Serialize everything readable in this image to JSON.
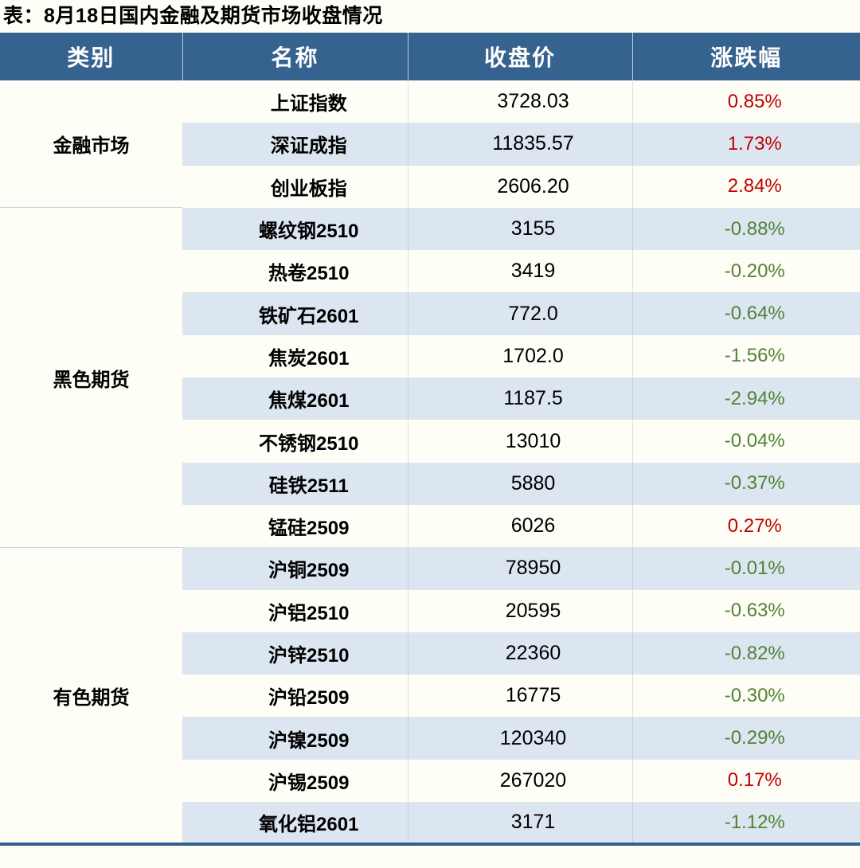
{
  "title": "表：8月18日国内金融及期货市场收盘情况",
  "colors": {
    "header_bg": "#36628F",
    "stripe_row_bg": "#DCE6F1",
    "page_bg": "#FFFEF6",
    "bottom_rule": "#31608E",
    "up_red": "#C00000",
    "down_green": "#538135"
  },
  "table": {
    "columns": [
      "类别",
      "名称",
      "收盘价",
      "涨跌幅"
    ],
    "groups": [
      {
        "category": "金融市场",
        "rows": [
          {
            "name": "上证指数",
            "close": "3728.03",
            "change": "0.85%",
            "trend": "up"
          },
          {
            "name": "深证成指",
            "close": "11835.57",
            "change": "1.73%",
            "trend": "up"
          },
          {
            "name": "创业板指",
            "close": "2606.20",
            "change": "2.84%",
            "trend": "up"
          }
        ]
      },
      {
        "category": "黑色期货",
        "rows": [
          {
            "name": "螺纹钢2510",
            "close": "3155",
            "change": "-0.88%",
            "trend": "down"
          },
          {
            "name": "热卷2510",
            "close": "3419",
            "change": "-0.20%",
            "trend": "down"
          },
          {
            "name": "铁矿石2601",
            "close": "772.0",
            "change": "-0.64%",
            "trend": "down"
          },
          {
            "name": "焦炭2601",
            "close": "1702.0",
            "change": "-1.56%",
            "trend": "down"
          },
          {
            "name": "焦煤2601",
            "close": "1187.5",
            "change": "-2.94%",
            "trend": "down"
          },
          {
            "name": "不锈钢2510",
            "close": "13010",
            "change": "-0.04%",
            "trend": "down"
          },
          {
            "name": "硅铁2511",
            "close": "5880",
            "change": "-0.37%",
            "trend": "down"
          },
          {
            "name": "锰硅2509",
            "close": "6026",
            "change": "0.27%",
            "trend": "up"
          }
        ]
      },
      {
        "category": "有色期货",
        "rows": [
          {
            "name": "沪铜2509",
            "close": "78950",
            "change": "-0.01%",
            "trend": "down"
          },
          {
            "name": "沪铝2510",
            "close": "20595",
            "change": "-0.63%",
            "trend": "down"
          },
          {
            "name": "沪锌2510",
            "close": "22360",
            "change": "-0.82%",
            "trend": "down"
          },
          {
            "name": "沪铅2509",
            "close": "16775",
            "change": "-0.30%",
            "trend": "down"
          },
          {
            "name": "沪镍2509",
            "close": "120340",
            "change": "-0.29%",
            "trend": "down"
          },
          {
            "name": "沪锡2509",
            "close": "267020",
            "change": "0.17%",
            "trend": "up"
          },
          {
            "name": "氧化铝2601",
            "close": "3171",
            "change": "-1.12%",
            "trend": "down"
          }
        ]
      }
    ]
  },
  "chart_data": {
    "type": "table",
    "title": "表：8月18日国内金融及期货市场收盘情况",
    "columns": [
      "类别",
      "名称",
      "收盘价",
      "涨跌幅"
    ],
    "rows": [
      [
        "金融市场",
        "上证指数",
        3728.03,
        0.85
      ],
      [
        "金融市场",
        "深证成指",
        11835.57,
        1.73
      ],
      [
        "金融市场",
        "创业板指",
        2606.2,
        2.84
      ],
      [
        "黑色期货",
        "螺纹钢2510",
        3155,
        -0.88
      ],
      [
        "黑色期货",
        "热卷2510",
        3419,
        -0.2
      ],
      [
        "黑色期货",
        "铁矿石2601",
        772.0,
        -0.64
      ],
      [
        "黑色期货",
        "焦炭2601",
        1702.0,
        -1.56
      ],
      [
        "黑色期货",
        "焦煤2601",
        1187.5,
        -2.94
      ],
      [
        "黑色期货",
        "不锈钢2510",
        13010,
        -0.04
      ],
      [
        "黑色期货",
        "硅铁2511",
        5880,
        -0.37
      ],
      [
        "黑色期货",
        "锰硅2509",
        6026,
        0.27
      ],
      [
        "有色期货",
        "沪铜2509",
        78950,
        -0.01
      ],
      [
        "有色期货",
        "沪铝2510",
        20595,
        -0.63
      ],
      [
        "有色期货",
        "沪锌2510",
        22360,
        -0.82
      ],
      [
        "有色期货",
        "沪铅2509",
        16775,
        -0.3
      ],
      [
        "有色期货",
        "沪镍2509",
        120340,
        -0.29
      ],
      [
        "有色期货",
        "沪锡2509",
        267020,
        0.17
      ],
      [
        "有色期货",
        "氧化铝2601",
        3171,
        -1.12
      ]
    ],
    "notes": "涨跌幅 in percent; positive values shown red, negative shown green"
  }
}
